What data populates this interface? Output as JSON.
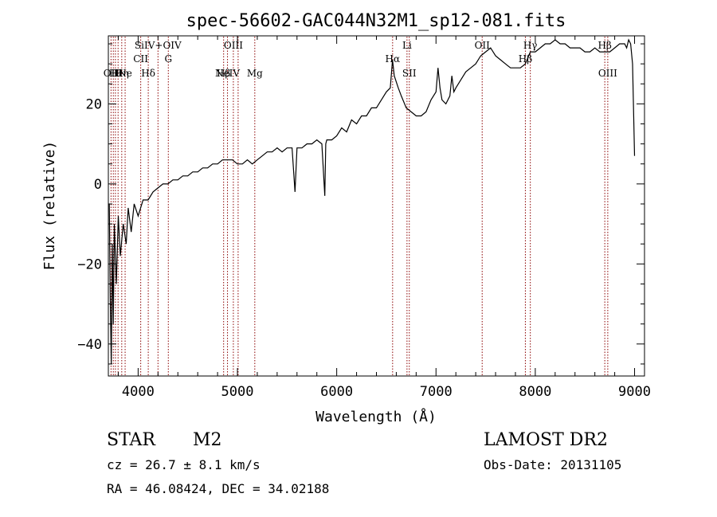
{
  "chart_data": {
    "type": "line",
    "title": "spec-56602-GAC044N32M1_sp12-081.fits",
    "xlabel": "Wavelength (Å)",
    "ylabel": "Flux (relative)",
    "xlim": [
      3700,
      9100
    ],
    "ylim": [
      -48,
      37
    ],
    "xticks": [
      4000,
      5000,
      6000,
      7000,
      8000,
      9000
    ],
    "yticks": [
      -40,
      -20,
      0,
      20
    ],
    "grid": false,
    "line_color": "#000000",
    "marker_color": "#8b0000",
    "series": [
      {
        "x": [
          3710,
          3720,
          3730,
          3740,
          3750,
          3760,
          3780,
          3800,
          3820,
          3850,
          3880,
          3900,
          3930,
          3960,
          4000,
          4050,
          4100,
          4150,
          4200,
          4250,
          4300,
          4350,
          4400,
          4450,
          4500,
          4550,
          4600,
          4650,
          4700,
          4750,
          4800,
          4850,
          4900,
          4950,
          5000,
          5050,
          5100,
          5150,
          5200,
          5250,
          5300,
          5350,
          5400,
          5450,
          5500,
          5550,
          5580,
          5600,
          5650,
          5700,
          5750,
          5800,
          5850,
          5880,
          5890,
          5900,
          5950,
          6000,
          6050,
          6100,
          6150,
          6200,
          6250,
          6300,
          6350,
          6400,
          6450,
          6500,
          6540,
          6562,
          6580,
          6620,
          6650,
          6700,
          6750,
          6800,
          6850,
          6900,
          6950,
          7000,
          7020,
          7040,
          7060,
          7100,
          7140,
          7160,
          7180,
          7200,
          7250,
          7300,
          7350,
          7400,
          7450,
          7500,
          7550,
          7600,
          7650,
          7700,
          7750,
          7800,
          7850,
          7900,
          7950,
          8000,
          8050,
          8100,
          8150,
          8200,
          8250,
          8300,
          8350,
          8400,
          8450,
          8500,
          8550,
          8600,
          8650,
          8700,
          8750,
          8800,
          8850,
          8900,
          8920,
          8940,
          8960,
          8980,
          9000
        ],
        "y": [
          -5,
          -30,
          -45,
          -15,
          -35,
          -10,
          -25,
          -8,
          -18,
          -10,
          -15,
          -6,
          -12,
          -5,
          -8,
          -4,
          -4,
          -2,
          -1,
          0,
          0,
          1,
          1,
          2,
          2,
          3,
          3,
          4,
          4,
          5,
          5,
          6,
          6,
          6,
          5,
          5,
          6,
          5,
          6,
          7,
          8,
          8,
          9,
          8,
          9,
          9,
          -2,
          9,
          9,
          10,
          10,
          11,
          10,
          -3,
          10,
          11,
          11,
          12,
          14,
          13,
          16,
          15,
          17,
          17,
          19,
          19,
          21,
          23,
          24,
          31,
          27,
          24,
          22,
          19,
          18,
          17,
          17,
          18,
          21,
          23,
          29,
          24,
          21,
          20,
          22,
          27,
          23,
          24,
          26,
          28,
          29,
          30,
          32,
          33,
          34,
          32,
          31,
          30,
          29,
          29,
          29,
          30,
          33,
          33,
          34,
          35,
          35,
          36,
          35,
          35,
          34,
          34,
          34,
          33,
          33,
          34,
          33,
          33,
          33,
          34,
          35,
          35,
          34,
          36,
          35,
          30,
          7
        ]
      }
    ],
    "line_markers": [
      {
        "x": 3727,
        "label": "OII",
        "row": 2
      },
      {
        "x": 3750,
        "label": "H",
        "row": 2
      },
      {
        "x": 3771,
        "label": "H",
        "row": 2
      },
      {
        "x": 3798,
        "label": "H",
        "row": 2
      },
      {
        "x": 3835,
        "label": "Hη",
        "row": 2
      },
      {
        "x": 3869,
        "label": "Ne",
        "row": 2
      },
      {
        "x": 4026,
        "label": "CII",
        "row": 1
      },
      {
        "x": 4102,
        "label": "Hδ",
        "row": 2
      },
      {
        "x": 4200,
        "label": "SiIV+OIV",
        "row": 0
      },
      {
        "x": 4304,
        "label": "G",
        "row": 1
      },
      {
        "x": 4861,
        "label": "Hβ",
        "row": 2
      },
      {
        "x": 4900,
        "label": "NeIV",
        "row": 2
      },
      {
        "x": 4959,
        "label": "OIII",
        "row": 0
      },
      {
        "x": 5007,
        "label": "",
        "row": 0
      },
      {
        "x": 5175,
        "label": "Mg",
        "row": 2
      },
      {
        "x": 6563,
        "label": "Hα",
        "row": 1
      },
      {
        "x": 6708,
        "label": "Li",
        "row": 0
      },
      {
        "x": 6731,
        "label": "SII",
        "row": 2
      },
      {
        "x": 7465,
        "label": "OII",
        "row": 0
      },
      {
        "x": 7900,
        "label": "Hβ",
        "row": 1
      },
      {
        "x": 7950,
        "label": "Hγ",
        "row": 0
      },
      {
        "x": 8700,
        "label": "Hβ",
        "row": 0
      },
      {
        "x": 8730,
        "label": "OIII",
        "row": 2
      }
    ]
  },
  "info": {
    "class_label": "STAR",
    "subclass_label": "M2",
    "survey_label": "LAMOST DR2",
    "cz_line": "cz = 26.7 ± 8.1 km/s",
    "obs_date_line": "Obs-Date: 20131105",
    "radec_line": "RA =  46.08424, DEC =  34.02188"
  }
}
